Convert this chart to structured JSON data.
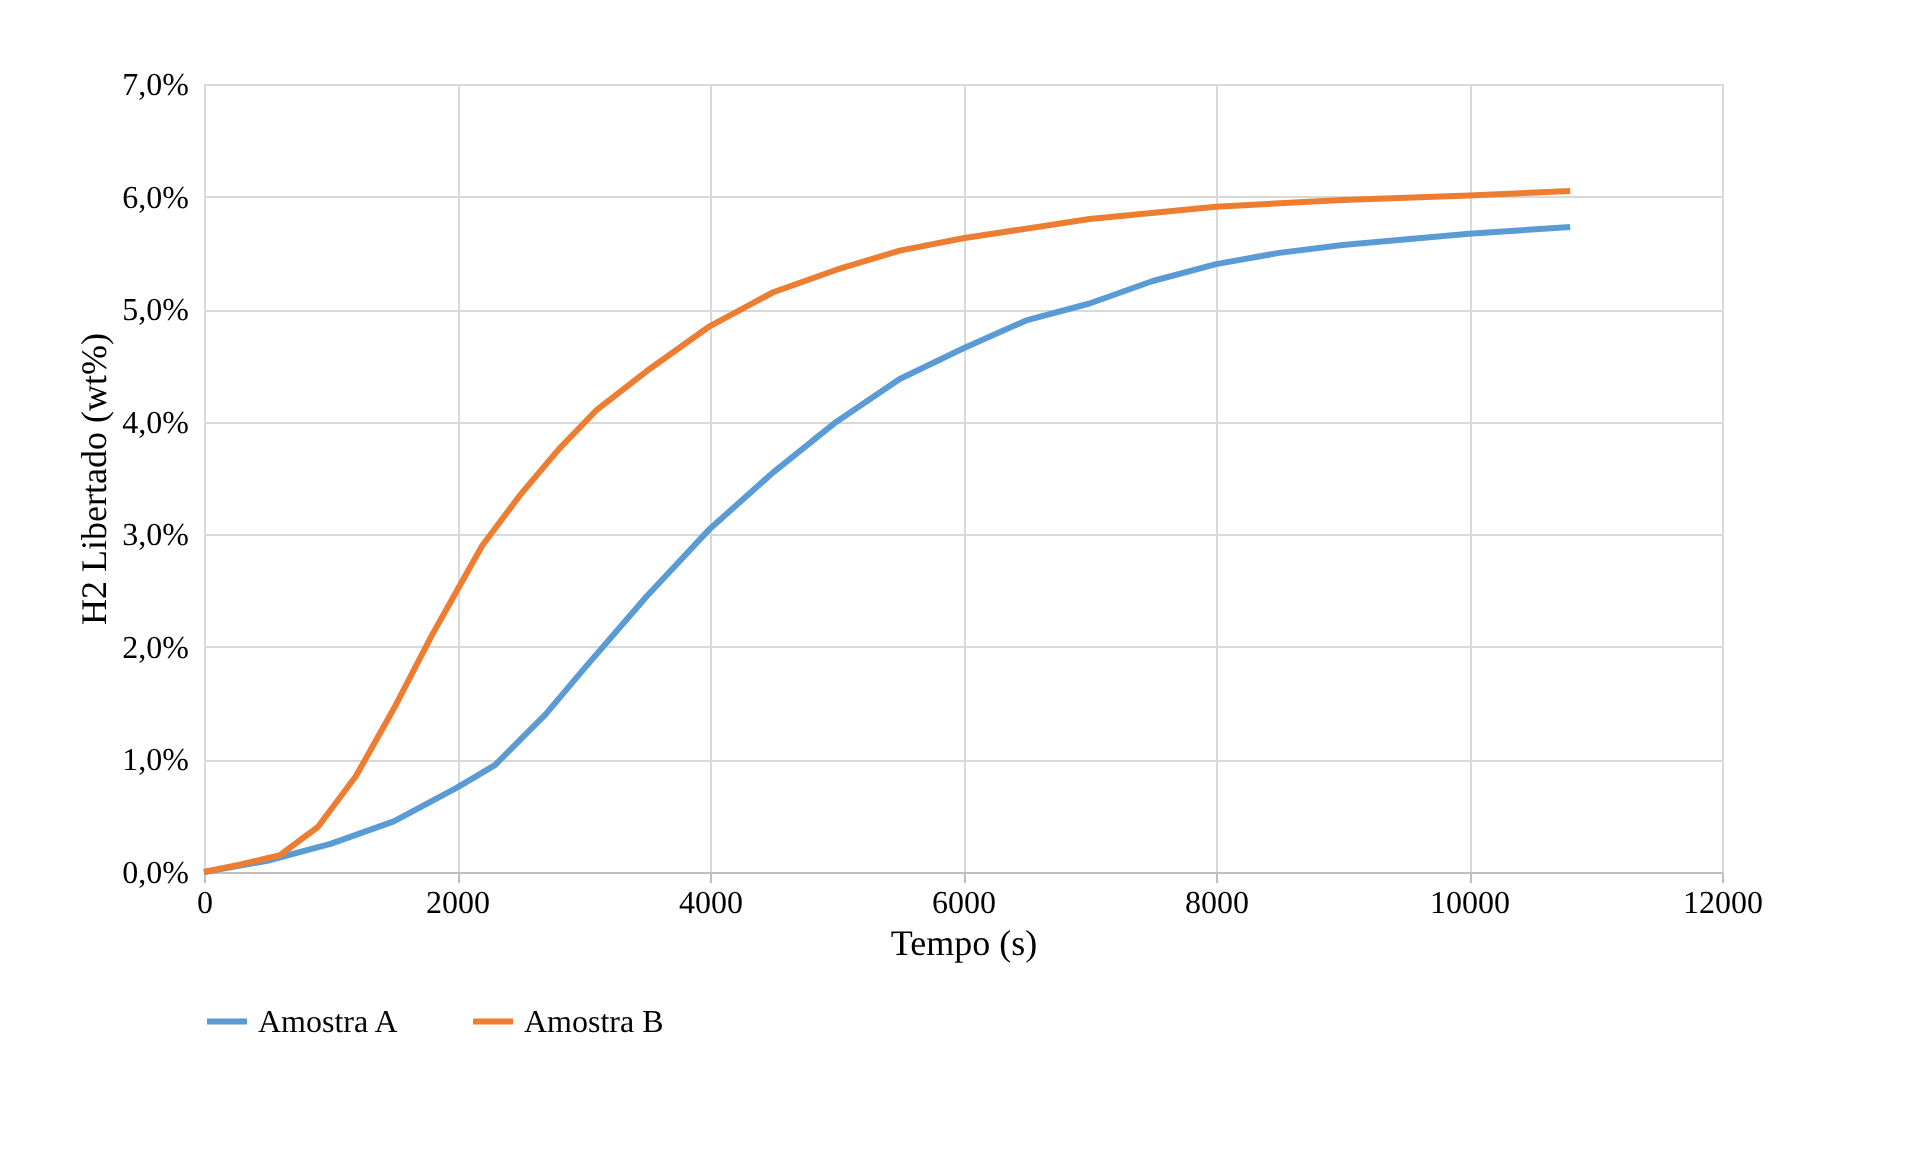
{
  "chart_data": {
    "type": "line",
    "xlabel": "Tempo (s)",
    "ylabel": "H2 Libertado (wt%)",
    "xlim": [
      0,
      12000
    ],
    "xticks": [
      0,
      2000,
      4000,
      6000,
      8000,
      10000,
      12000
    ],
    "ylim": [
      0,
      7
    ],
    "yticks": [
      {
        "value": 0,
        "label": "0,0%"
      },
      {
        "value": 1,
        "label": "1,0%"
      },
      {
        "value": 2,
        "label": "2,0%"
      },
      {
        "value": 3,
        "label": "3,0%"
      },
      {
        "value": 4,
        "label": "4,0%"
      },
      {
        "value": 5,
        "label": "5,0%"
      },
      {
        "value": 6,
        "label": "6,0%"
      },
      {
        "value": 7,
        "label": "7,0%"
      }
    ],
    "grid": true,
    "legend": "bottom",
    "marker": "none",
    "line_style": "solid",
    "series": [
      {
        "name": "Amostra A",
        "color": "#5b9bd5",
        "x": [
          0,
          500,
          1000,
          1500,
          2000,
          2300,
          2700,
          3000,
          3500,
          4000,
          4500,
          5000,
          5500,
          6000,
          6500,
          7000,
          7500,
          8000,
          8500,
          9000,
          10000,
          10800
        ],
        "values": [
          0,
          0.1,
          0.25,
          0.45,
          0.75,
          0.95,
          1.4,
          1.8,
          2.45,
          3.05,
          3.55,
          4.0,
          4.38,
          4.65,
          4.9,
          5.05,
          5.25,
          5.4,
          5.5,
          5.57,
          5.67,
          5.73
        ]
      },
      {
        "name": "Amostra B",
        "color": "#ed7d31",
        "x": [
          0,
          300,
          600,
          900,
          1200,
          1500,
          1800,
          2000,
          2200,
          2500,
          2800,
          3100,
          3500,
          4000,
          4500,
          5000,
          5500,
          6000,
          7000,
          8000,
          9000,
          10000,
          10800
        ],
        "values": [
          0,
          0.07,
          0.15,
          0.4,
          0.85,
          1.45,
          2.1,
          2.5,
          2.9,
          3.35,
          3.75,
          4.1,
          4.45,
          4.85,
          5.15,
          5.35,
          5.52,
          5.63,
          5.8,
          5.91,
          5.97,
          6.01,
          6.05
        ]
      }
    ]
  }
}
